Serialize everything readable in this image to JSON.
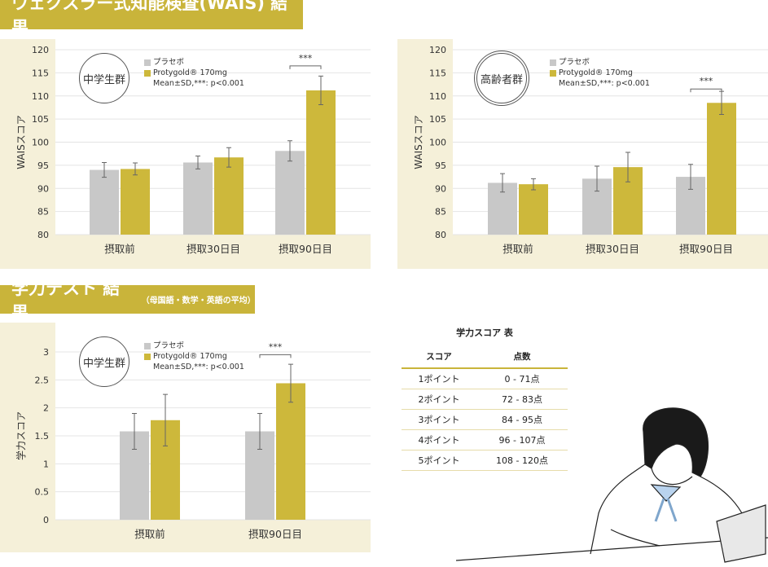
{
  "sections": {
    "wais_title": "ウェクスラー式知能検査(WAIS) 結果",
    "academic_title": "学力テスト 結果",
    "academic_subtitle": "（母国語・数学・英語の平均）"
  },
  "colors": {
    "placebo": "#c8c8c8",
    "protygold": "#cdb83b",
    "panel": "#f5f0d9",
    "banner": "#c9b43a"
  },
  "legend": {
    "placebo": "プラセボ",
    "protygold": "Protygold® 170mg",
    "note": "Mean±SD,***: p<0.001"
  },
  "chart_data": [
    {
      "type": "bar",
      "group_label": "中学生群",
      "ylabel": "WAISスコア",
      "ylim": [
        80,
        120
      ],
      "yticks": [
        80,
        85,
        90,
        95,
        100,
        105,
        110,
        115,
        120
      ],
      "grid": true,
      "categories": [
        "摂取前",
        "摂取30日目",
        "摂取90日目"
      ],
      "series": [
        {
          "name": "プラセボ",
          "values": [
            94.0,
            95.6,
            98.1
          ],
          "sd": [
            1.6,
            1.4,
            2.2
          ]
        },
        {
          "name": "Protygold® 170mg",
          "values": [
            94.2,
            96.7,
            111.2
          ],
          "sd": [
            1.3,
            2.1,
            3.1
          ]
        }
      ],
      "annotations": [
        {
          "category": "摂取90日目",
          "text": "***",
          "level": 116.5
        }
      ]
    },
    {
      "type": "bar",
      "group_label": "高齢者群",
      "ylabel": "WAISスコア",
      "ylim": [
        80,
        120
      ],
      "yticks": [
        80,
        85,
        90,
        95,
        100,
        105,
        110,
        115,
        120
      ],
      "grid": true,
      "categories": [
        "摂取前",
        "摂取30日目",
        "摂取90日目"
      ],
      "series": [
        {
          "name": "プラセボ",
          "values": [
            91.2,
            92.1,
            92.5
          ],
          "sd": [
            2.0,
            2.7,
            2.7
          ]
        },
        {
          "name": "Protygold® 170mg",
          "values": [
            90.9,
            94.6,
            108.5
          ],
          "sd": [
            1.2,
            3.2,
            2.5
          ]
        }
      ],
      "annotations": [
        {
          "category": "摂取90日目",
          "text": "***",
          "level": 111.5
        }
      ]
    },
    {
      "type": "bar",
      "group_label": "中学生群",
      "ylabel": "学力スコア",
      "ylim": [
        0,
        3.2
      ],
      "yticks": [
        0,
        0.5,
        1,
        1.5,
        2,
        2.5,
        3
      ],
      "grid": true,
      "categories": [
        "摂取前",
        "摂取90日目"
      ],
      "series": [
        {
          "name": "プラセボ",
          "values": [
            1.58,
            1.58
          ],
          "sd": [
            0.32,
            0.32
          ]
        },
        {
          "name": "Protygold® 170mg",
          "values": [
            1.78,
            2.44
          ],
          "sd": [
            0.46,
            0.34
          ]
        }
      ],
      "annotations": [
        {
          "category": "摂取90日目",
          "text": "***",
          "level": 2.95
        }
      ]
    }
  ],
  "score_table": {
    "title": "学力スコア 表",
    "headers": [
      "スコア",
      "点数"
    ],
    "rows": [
      [
        "1ポイント",
        "0 - 71点"
      ],
      [
        "2ポイント",
        "72 - 83点"
      ],
      [
        "3ポイント",
        "84 - 95点"
      ],
      [
        "4ポイント",
        "96 - 107点"
      ],
      [
        "5ポイント",
        "108 - 120点"
      ]
    ]
  }
}
